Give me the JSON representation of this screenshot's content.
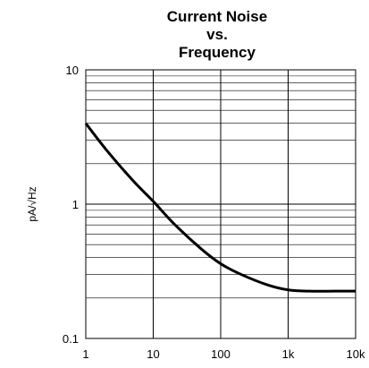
{
  "chart_data": {
    "type": "line",
    "title_lines": [
      "Current Noise",
      "vs.",
      "Frequency"
    ],
    "ylabel": "pA/√Hz",
    "xscale": "log",
    "yscale": "log",
    "xlim": [
      1,
      10000
    ],
    "ylim": [
      0.1,
      10
    ],
    "grid": true,
    "x_tick_labels": [
      "1",
      "10",
      "100",
      "1k",
      "10k"
    ],
    "y_tick_labels": [
      "0.1",
      "1",
      "10"
    ],
    "series": [
      {
        "color": "#000000",
        "x": [
          1,
          2,
          5,
          10,
          20,
          50,
          100,
          200,
          500,
          1000,
          2000,
          5000,
          10000
        ],
        "y": [
          4.0,
          2.55,
          1.5,
          1.05,
          0.72,
          0.47,
          0.36,
          0.3,
          0.25,
          0.23,
          0.225,
          0.225,
          0.225
        ]
      }
    ]
  }
}
